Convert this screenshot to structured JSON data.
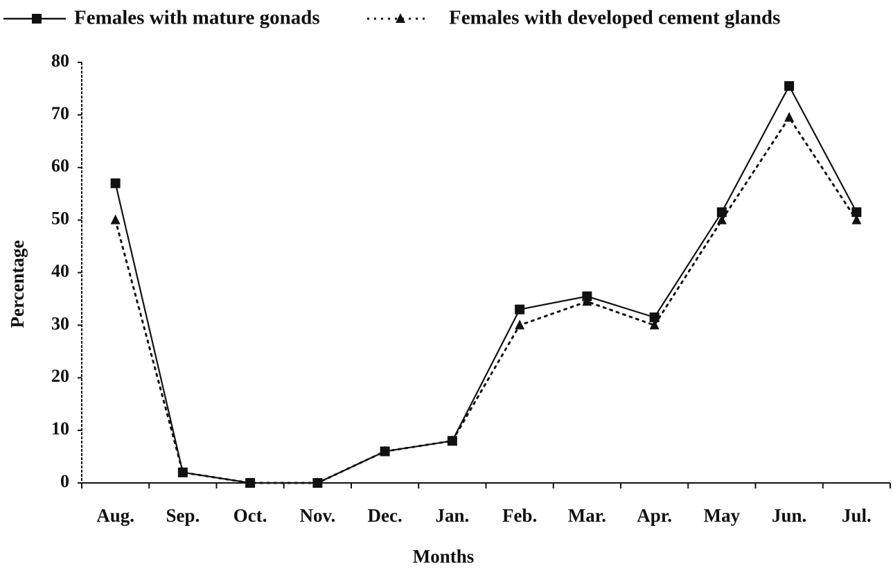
{
  "chart_data": {
    "type": "line",
    "x_label": "Months",
    "y_label": "Percentage",
    "categories": [
      "Aug.",
      "Sep.",
      "Oct.",
      "Nov.",
      "Dec.",
      "Jan.",
      "Feb.",
      "Mar.",
      "Apr.",
      "May",
      "Jun.",
      "Jul."
    ],
    "series": [
      {
        "name": "Females with mature gonads",
        "color": "#111111",
        "marker": "square",
        "dash": "solid",
        "values": [
          57,
          2,
          0,
          0,
          6,
          8,
          33,
          35.5,
          31.5,
          51.5,
          75.5,
          51.5
        ]
      },
      {
        "name": "Females with developed cement glands",
        "color": "#111111",
        "marker": "triangle",
        "dash": "dotted",
        "values": [
          50,
          2,
          0,
          0,
          6,
          8,
          30,
          34.5,
          30,
          50,
          69.5,
          50
        ]
      }
    ],
    "ylim": [
      0,
      80
    ],
    "yticks": [
      0,
      10,
      20,
      30,
      40,
      50,
      60,
      70,
      80
    ],
    "legend": "top",
    "grid": false
  }
}
